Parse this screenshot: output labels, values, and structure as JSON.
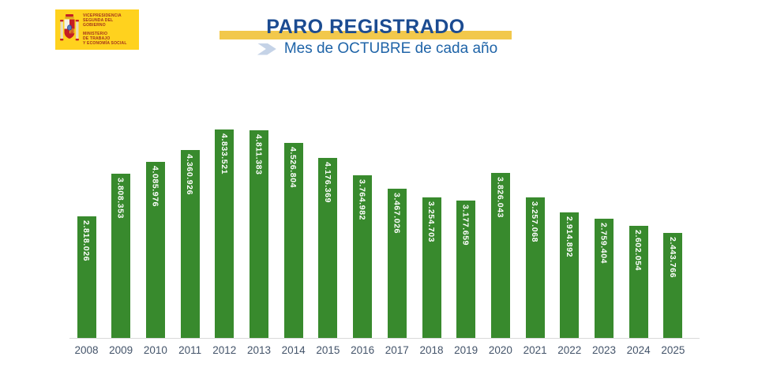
{
  "page": {
    "background": "#ffffff"
  },
  "logo": {
    "bg_color": "#FFD21E",
    "text_color": "#A3341C",
    "top_text": "VICEPRESIDENCIA\nSEGUNDA DEL GOBIERNO",
    "bottom_text": "MINISTERIO\nDE TRABAJO\nY ECONOMÍA SOCIAL"
  },
  "header": {
    "title": "PARO REGISTRADO",
    "subtitle": "Mes de OCTUBRE de cada año",
    "band_color": "#F2C84B",
    "title_color": "#1B4B91",
    "subtitle_color": "#1F64A8",
    "chevron_color": "#C5D3E7"
  },
  "chart_data": {
    "type": "bar",
    "title": "PARO REGISTRADO",
    "subtitle": "Mes de OCTUBRE de cada año",
    "categories": [
      "2008",
      "2009",
      "2010",
      "2011",
      "2012",
      "2013",
      "2014",
      "2015",
      "2016",
      "2017",
      "2018",
      "2019",
      "2020",
      "2021",
      "2022",
      "2023",
      "2024",
      "2025"
    ],
    "values": [
      2818026,
      3808353,
      4085976,
      4360926,
      4833521,
      4811383,
      4526804,
      4176369,
      3764982,
      3467026,
      3254703,
      3177659,
      3826043,
      3257068,
      2914892,
      2759404,
      2602054,
      2443766
    ],
    "labels": [
      "2.818.026",
      "3.808.353",
      "4.085.976",
      "4.360.926",
      "4.833.521",
      "4.811.383",
      "4.526.804",
      "4.176.369",
      "3.764.982",
      "3.467.026",
      "3.254.703",
      "3.177.659",
      "3.826.043",
      "3.257.068",
      "2.914.892",
      "2.759.404",
      "2.602.054",
      "2.443.766"
    ],
    "xlabel": "",
    "ylabel": "",
    "ylim": [
      0,
      4833521
    ],
    "grid": false,
    "legend": false,
    "bar_color": "#388A2D",
    "value_label_color": "#FFFFFF",
    "axis_label_color": "#44546A",
    "axis_line_color": "#D9D9D9"
  }
}
